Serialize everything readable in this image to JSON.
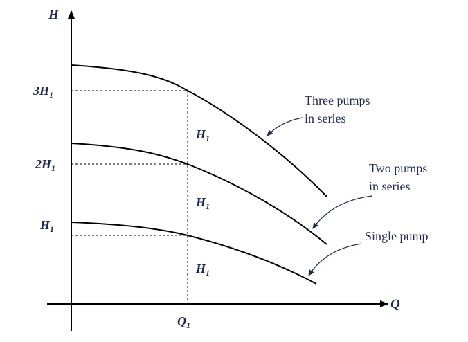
{
  "axes": {
    "y_label": "H",
    "x_label": "Q"
  },
  "ticks": {
    "y": [
      {
        "main": "3H",
        "sub": "1"
      },
      {
        "main": "2H",
        "sub": "1"
      },
      {
        "main": "H",
        "sub": "1"
      }
    ],
    "x": {
      "main": "Q",
      "sub": "1"
    }
  },
  "increments": [
    {
      "main": "H",
      "sub": "1"
    },
    {
      "main": "H",
      "sub": "1"
    },
    {
      "main": "H",
      "sub": "1"
    }
  ],
  "curves": [
    {
      "id": "three",
      "label_lines": [
        "Three pumps",
        "in series"
      ]
    },
    {
      "id": "two",
      "label_lines": [
        "Two pumps",
        "in series"
      ]
    },
    {
      "id": "single",
      "label_lines": [
        "Single pump"
      ]
    }
  ],
  "colors": {
    "ink": "#000000",
    "label": "#1f2b4d"
  }
}
